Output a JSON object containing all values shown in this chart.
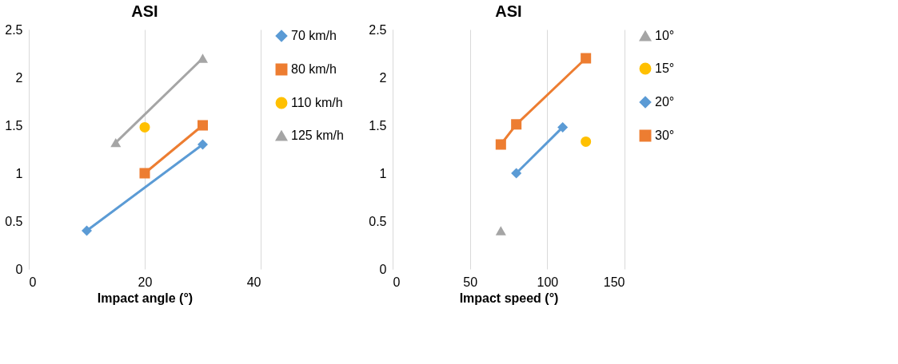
{
  "chart_data": [
    {
      "type": "line",
      "title": "ASI",
      "xlabel": "Impact angle (°)",
      "xlim": [
        0,
        40
      ],
      "xticks": [
        0,
        20,
        40
      ],
      "ylim": [
        0,
        2.5
      ],
      "yticks": [
        0,
        0.5,
        1,
        1.5,
        2,
        2.5
      ],
      "grid": "x",
      "legend": "right",
      "line_style": "solid",
      "series": [
        {
          "name": "70 km/h",
          "color": "#5b9bd5",
          "marker": "diamond",
          "x": [
            10,
            30
          ],
          "values": [
            0.4,
            1.3
          ]
        },
        {
          "name": "80 km/h",
          "color": "#ed7d31",
          "marker": "square",
          "x": [
            20,
            30
          ],
          "values": [
            1.0,
            1.5
          ]
        },
        {
          "name": "110 km/h",
          "color": "#ffc000",
          "marker": "circle",
          "x": [
            20
          ],
          "values": [
            1.48
          ]
        },
        {
          "name": "125 km/h",
          "color": "#a5a5a5",
          "marker": "triangle",
          "x": [
            15,
            30
          ],
          "values": [
            1.32,
            2.2
          ]
        }
      ]
    },
    {
      "type": "line",
      "title": "ASI",
      "xlabel": "Impact speed (°)",
      "xlim": [
        0,
        150
      ],
      "xticks": [
        0,
        50,
        100,
        150
      ],
      "ylim": [
        0,
        2.5
      ],
      "yticks": [
        0,
        0.5,
        1,
        1.5,
        2,
        2.5
      ],
      "grid": "x",
      "legend": "right",
      "line_style": "solid",
      "series": [
        {
          "name": "10°",
          "color": "#a5a5a5",
          "marker": "triangle",
          "x": [
            70
          ],
          "values": [
            0.4
          ]
        },
        {
          "name": "15°",
          "color": "#ffc000",
          "marker": "circle",
          "x": [
            125
          ],
          "values": [
            1.33
          ]
        },
        {
          "name": "20°",
          "color": "#5b9bd5",
          "marker": "diamond",
          "x": [
            80,
            110
          ],
          "values": [
            1.0,
            1.48
          ]
        },
        {
          "name": "30°",
          "color": "#ed7d31",
          "marker": "square",
          "x": [
            70,
            80,
            125
          ],
          "values": [
            1.3,
            1.51,
            2.2
          ]
        }
      ]
    }
  ]
}
